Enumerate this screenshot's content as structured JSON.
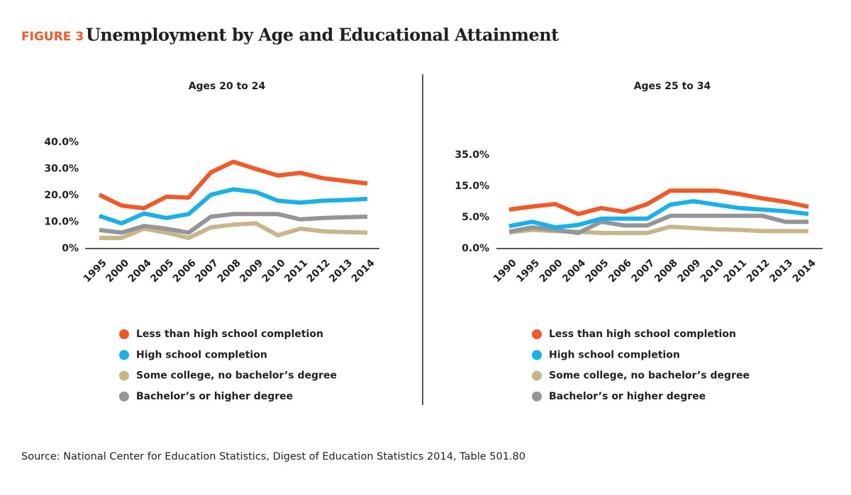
{
  "figure_label": "FIGURE 3",
  "title": "Unemployment by Age and Educational Attainment",
  "source": "Source: National Center for Education Statistics, Digest of Education Statistics 2014, Table 501.80",
  "chart_data": [
    {
      "type": "line",
      "title": "Ages 20 to 24",
      "categories": [
        "1995",
        "2000",
        "2004",
        "2005",
        "2006",
        "2007",
        "2008",
        "2009",
        "2010",
        "2011",
        "2012",
        "2013",
        "2014"
      ],
      "ylim": [
        0,
        40
      ],
      "yticks": [
        {
          "value": 0,
          "label": "0%"
        },
        {
          "value": 10,
          "label": "10.0%"
        },
        {
          "value": 20,
          "label": "20.0%"
        },
        {
          "value": 30,
          "label": "30.0%"
        },
        {
          "value": 40,
          "label": "40.0%"
        }
      ],
      "series": [
        {
          "name": "Less than high school completion",
          "color": "#f05a28",
          "values": [
            20.3,
            16.2,
            15.2,
            19.5,
            19.2,
            28.7,
            32.7,
            30,
            27.5,
            28.5,
            26.5,
            25.5,
            24.5
          ]
        },
        {
          "name": "High school completion",
          "color": "#1ab0e8",
          "values": [
            12.3,
            9.5,
            13.2,
            11.5,
            13,
            20.3,
            22.3,
            21.3,
            18,
            17.3,
            18,
            18.3,
            18.7
          ]
        },
        {
          "name": "Some college, no bachelor’s degree",
          "color": "#c8b68a",
          "values": [
            4,
            4,
            7.5,
            6,
            4,
            8,
            9,
            9.5,
            5,
            7.5,
            6.5,
            6.2,
            6
          ]
        },
        {
          "name": "Bachelor’s or higher degree",
          "color": "#939598",
          "values": [
            7,
            6,
            8.5,
            7.5,
            6,
            12,
            13,
            13,
            13,
            11,
            11.5,
            11.8,
            12
          ]
        }
      ]
    },
    {
      "type": "line",
      "title": "Ages 25 to 34",
      "categories": [
        "1990",
        "1995",
        "2000",
        "2004",
        "2005",
        "2006",
        "2007",
        "2008",
        "2009",
        "2010",
        "2011",
        "2012",
        "2013",
        "2014"
      ],
      "ylim": [
        0,
        35
      ],
      "yticks": [
        {
          "value": 0,
          "label": "0.0%"
        },
        {
          "value": 5,
          "label": "5.0%"
        },
        {
          "value": 15,
          "label": "15.0%"
        },
        {
          "value": 35,
          "label": "35.0%"
        }
      ],
      "series": [
        {
          "name": "Less than high school completion",
          "color": "#f05a28",
          "values": [
            7.5,
            8.5,
            9.3,
            6.1,
            8,
            6.8,
            9.3,
            13.6,
            13.6,
            13.6,
            12.5,
            11.1,
            10,
            8.4
          ]
        },
        {
          "name": "High school completion",
          "color": "#1ab0e8",
          "values": [
            3.6,
            4.3,
            3.4,
            3.8,
            4.8,
            4.8,
            4.8,
            9.1,
            10.2,
            9.1,
            8,
            7.5,
            7,
            6.1
          ]
        },
        {
          "name": "Some college, no bachelor’s degree",
          "color": "#c8b68a",
          "values": [
            2.6,
            3,
            2.8,
            2.7,
            2.5,
            2.5,
            2.5,
            3.5,
            3.3,
            3.1,
            3,
            2.8,
            2.8,
            2.8
          ]
        },
        {
          "name": "Bachelor’s or higher degree",
          "color": "#939598",
          "values": [
            2.7,
            3.4,
            3,
            2.5,
            4.3,
            3.7,
            3.7,
            5.5,
            5.5,
            5.5,
            5.5,
            5.5,
            4.3,
            4.3
          ]
        }
      ]
    }
  ]
}
